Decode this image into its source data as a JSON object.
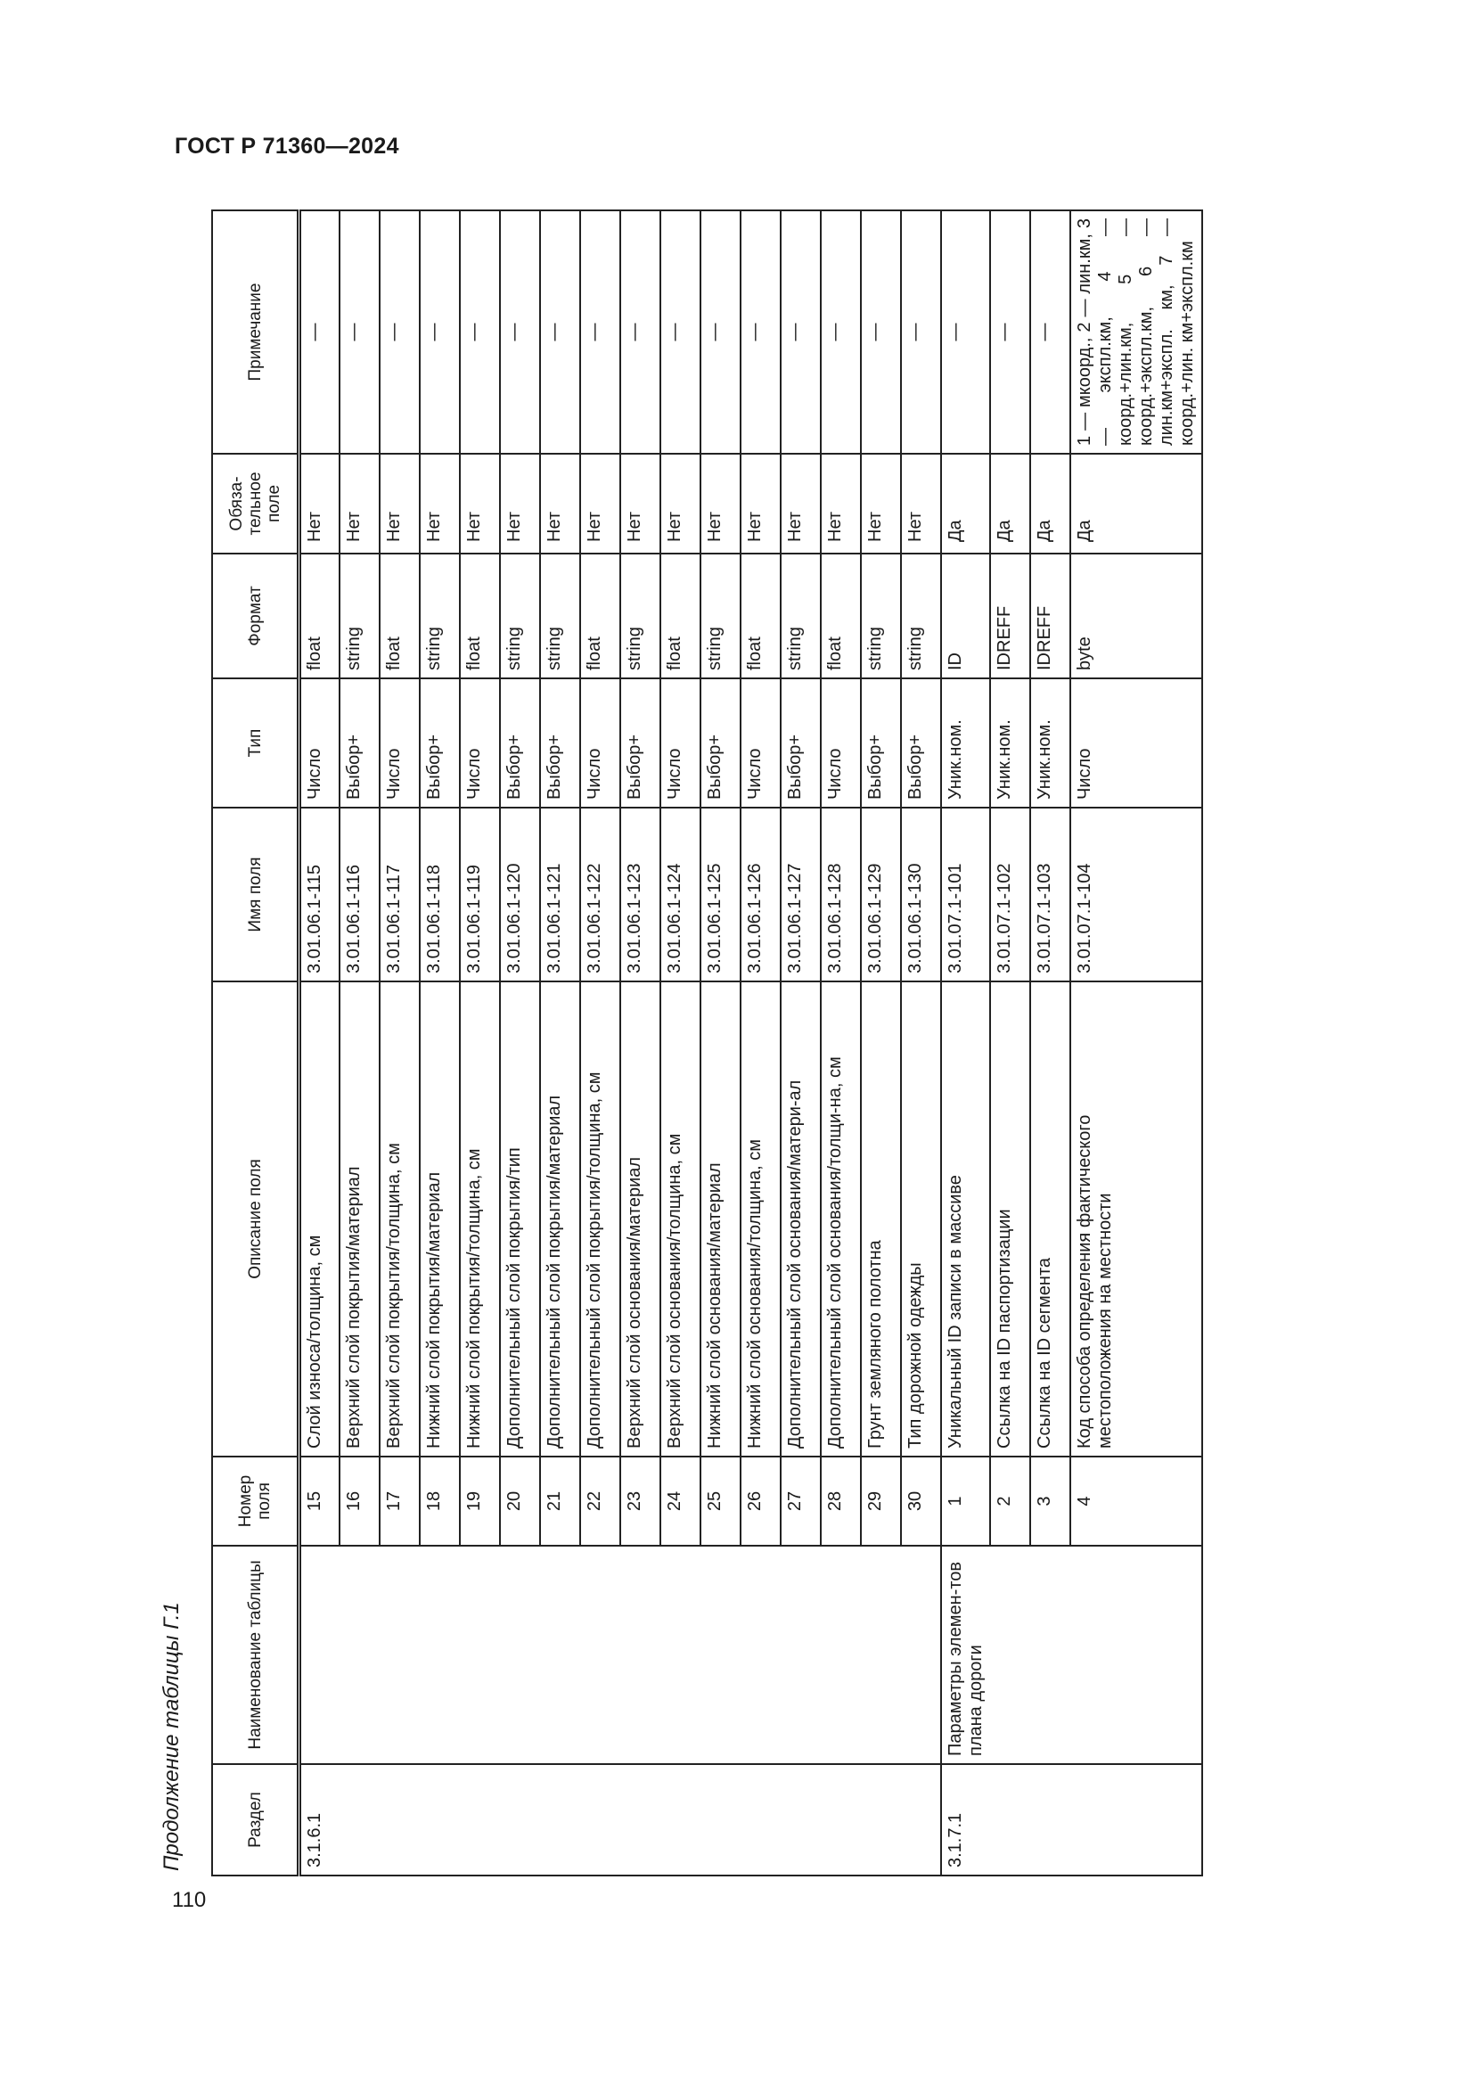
{
  "header": {
    "doc_title": "ГОСТ Р 71360—2024",
    "page_number": "110"
  },
  "caption": "Продолжение таблицы Г.1",
  "columns": [
    "Раздел",
    "Наименование таблицы",
    "Номер поля",
    "Описание поля",
    "Имя поля",
    "Тип",
    "Формат",
    "Обяза-тельное поле",
    "Примечание"
  ],
  "groups": [
    {
      "section": "3.1.6.1",
      "table_name": "",
      "rows": [
        {
          "num": "15",
          "desc": "Слой износа/толщина, см",
          "name": "3.01.06.1-115",
          "type": "Число",
          "format": "float",
          "required": "Нет",
          "note": "—"
        },
        {
          "num": "16",
          "desc": "Верхний слой покрытия/материал",
          "name": "3.01.06.1-116",
          "type": "Выбор+",
          "format": "string",
          "required": "Нет",
          "note": "—"
        },
        {
          "num": "17",
          "desc": "Верхний слой покрытия/толщина, см",
          "name": "3.01.06.1-117",
          "type": "Число",
          "format": "float",
          "required": "Нет",
          "note": "—"
        },
        {
          "num": "18",
          "desc": "Нижний слой покрытия/материал",
          "name": "3.01.06.1-118",
          "type": "Выбор+",
          "format": "string",
          "required": "Нет",
          "note": "—"
        },
        {
          "num": "19",
          "desc": "Нижний слой покрытия/толщина, см",
          "name": "3.01.06.1-119",
          "type": "Число",
          "format": "float",
          "required": "Нет",
          "note": "—"
        },
        {
          "num": "20",
          "desc": "Дополнительный слой покрытия/тип",
          "name": "3.01.06.1-120",
          "type": "Выбор+",
          "format": "string",
          "required": "Нет",
          "note": "—"
        },
        {
          "num": "21",
          "desc": "Дополнительный слой покрытия/материал",
          "name": "3.01.06.1-121",
          "type": "Выбор+",
          "format": "string",
          "required": "Нет",
          "note": "—"
        },
        {
          "num": "22",
          "desc": "Дополнительный слой покрытия/толщина, см",
          "name": "3.01.06.1-122",
          "type": "Число",
          "format": "float",
          "required": "Нет",
          "note": "—"
        },
        {
          "num": "23",
          "desc": "Верхний слой основания/материал",
          "name": "3.01.06.1-123",
          "type": "Выбор+",
          "format": "string",
          "required": "Нет",
          "note": "—"
        },
        {
          "num": "24",
          "desc": "Верхний слой основания/толщина, см",
          "name": "3.01.06.1-124",
          "type": "Число",
          "format": "float",
          "required": "Нет",
          "note": "—"
        },
        {
          "num": "25",
          "desc": "Нижний слой основания/материал",
          "name": "3.01.06.1-125",
          "type": "Выбор+",
          "format": "string",
          "required": "Нет",
          "note": "—"
        },
        {
          "num": "26",
          "desc": "Нижний слой основания/толщина, см",
          "name": "3.01.06.1-126",
          "type": "Число",
          "format": "float",
          "required": "Нет",
          "note": "—"
        },
        {
          "num": "27",
          "desc": "Дополнительный слой основания/матери-ал",
          "name": "3.01.06.1-127",
          "type": "Выбор+",
          "format": "string",
          "required": "Нет",
          "note": "—"
        },
        {
          "num": "28",
          "desc": "Дополнительный слой основания/толщи-на, см",
          "name": "3.01.06.1-128",
          "type": "Число",
          "format": "float",
          "required": "Нет",
          "note": "—"
        },
        {
          "num": "29",
          "desc": "Грунт земляного полотна",
          "name": "3.01.06.1-129",
          "type": "Выбор+",
          "format": "string",
          "required": "Нет",
          "note": "—"
        },
        {
          "num": "30",
          "desc": "Тип дорожной одежды",
          "name": "3.01.06.1-130",
          "type": "Выбор+",
          "format": "string",
          "required": "Нет",
          "note": "—"
        }
      ]
    },
    {
      "section": "3.1.7.1",
      "table_name": "Параметры элемен-тов плана дороги",
      "rows": [
        {
          "num": "1",
          "desc": "Уникальный ID записи в массиве",
          "name": "3.01.07.1-101",
          "type": "Уник.ном.",
          "format": "ID",
          "required": "Да",
          "note": "—"
        },
        {
          "num": "2",
          "desc": "Ссылка на ID паспортизации",
          "name": "3.01.07.1-102",
          "type": "Уник.ном.",
          "format": "IDREFF",
          "required": "Да",
          "note": "—"
        },
        {
          "num": "3",
          "desc": "Ссылка на ID сегмента",
          "name": "3.01.07.1-103",
          "type": "Уник.ном.",
          "format": "IDREFF",
          "required": "Да",
          "note": "—"
        },
        {
          "num": "4",
          "desc": "Код способа определения фактического местоположения на местности",
          "name": "3.01.07.1-104",
          "type": "Число",
          "format": "byte",
          "required": "Да",
          "note": "1 — мкоорд., 2 — лин.км, 3 — экспл.км, 4 — коорд.+лин.км, 5 — коорд.+экспл.км, 6 — лин.км+экспл. км, 7 — коорд.+лин. км+экспл.км"
        }
      ]
    }
  ]
}
